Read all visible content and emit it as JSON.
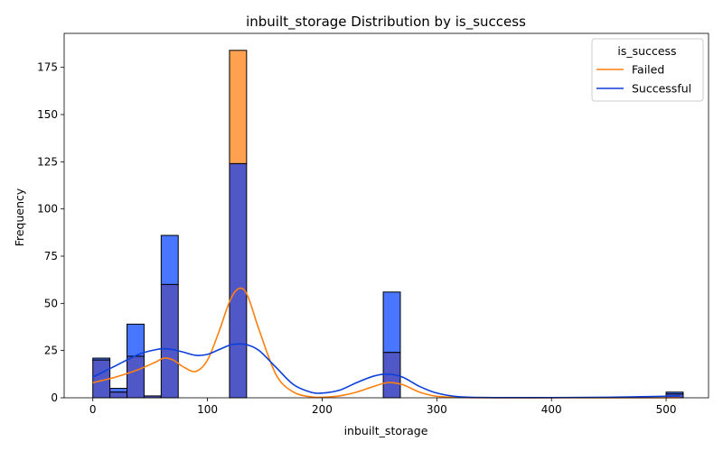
{
  "chart_data": {
    "type": "bar",
    "subtype": "stacked-histogram-with-kde",
    "title": "inbuilt_storage Distribution by is_success",
    "xlabel": "inbuilt_storage",
    "ylabel": "Frequency",
    "xlim": [
      -25,
      537
    ],
    "ylim": [
      0,
      193
    ],
    "xticks": [
      0,
      100,
      200,
      300,
      400,
      500
    ],
    "yticks": [
      0,
      25,
      50,
      75,
      100,
      125,
      150,
      175
    ],
    "grid": false,
    "legend": {
      "title": "is_success",
      "placement": "top-right",
      "entries": [
        "Failed",
        "Successful"
      ]
    },
    "colors": {
      "failed_line": "#ff7f0e",
      "failed_bar": "#ffa14f",
      "successful_line": "#0b3fd9",
      "successful_bar": "#4876ff",
      "overlap_bar": "#5058c8",
      "edge": "#000000"
    },
    "bin_width": 14.9,
    "bins": [
      {
        "start": 0.0,
        "failed": 20,
        "successful": 21
      },
      {
        "start": 14.9,
        "failed": 3,
        "successful": 5
      },
      {
        "start": 29.8,
        "failed": 22,
        "successful": 39
      },
      {
        "start": 44.7,
        "failed": 1,
        "successful": 1
      },
      {
        "start": 59.6,
        "failed": 60,
        "successful": 86
      },
      {
        "start": 119.2,
        "failed": 184,
        "successful": 124
      },
      {
        "start": 253.3,
        "failed": 24,
        "successful": 56
      },
      {
        "start": 500.0,
        "failed": 2,
        "successful": 3
      }
    ],
    "series": [
      {
        "name": "Failed",
        "kde": {
          "x": [
            0,
            20,
            40,
            55,
            62,
            70,
            80,
            90,
            100,
            110,
            120,
            128,
            135,
            145,
            160,
            175,
            190,
            200,
            215,
            230,
            245,
            257,
            270,
            285,
            300,
            320,
            350,
            400,
            450,
            500,
            512
          ],
          "y": [
            8,
            11,
            15,
            19,
            21,
            20,
            16,
            14,
            20,
            35,
            52,
            58,
            54,
            36,
            12,
            3,
            0.5,
            0.3,
            1,
            3,
            6,
            8,
            7,
            3,
            0.8,
            0.2,
            0,
            0,
            0,
            0,
            0
          ]
        }
      },
      {
        "name": "Successful",
        "kde": {
          "x": [
            0,
            20,
            40,
            55,
            62,
            70,
            80,
            90,
            100,
            110,
            120,
            128,
            135,
            145,
            160,
            175,
            190,
            200,
            215,
            230,
            245,
            257,
            270,
            285,
            300,
            320,
            350,
            400,
            450,
            500,
            512
          ],
          "y": [
            11,
            17,
            23,
            25.5,
            26,
            25.5,
            24,
            22.5,
            23,
            25.5,
            28,
            28.5,
            28,
            25,
            16,
            7,
            3,
            2.5,
            4,
            8,
            11.5,
            12.5,
            11,
            6,
            2.5,
            0.5,
            0.1,
            0.1,
            0.3,
            0.8,
            1
          ]
        }
      }
    ]
  }
}
